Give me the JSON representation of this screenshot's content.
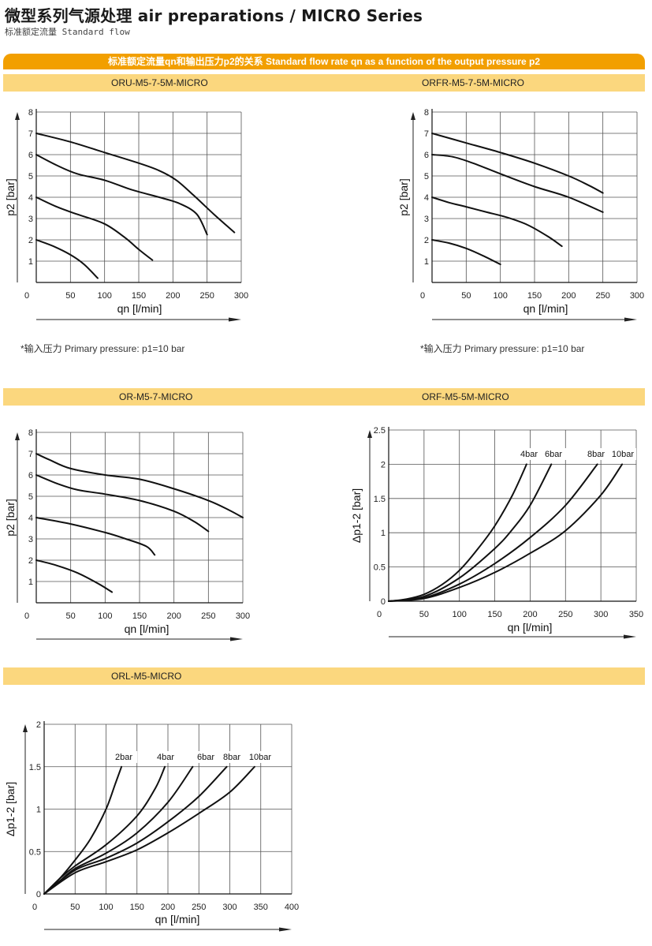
{
  "header": {
    "title": "微型系列气源处理 air preparations / MICRO Series",
    "subtitle": "标准额定流量 Standard flow"
  },
  "section_heading": "标准额定流量qn和输出压力p2的关系 Standard flow rate qn as a function of the output pressure p2",
  "footnotes": {
    "c0": "*输入压力 Primary pressure:  p1=10 bar",
    "c1": "*输入压力 Primary pressure:  p1=10 bar"
  },
  "colors": {
    "orange": "#f29f00",
    "band": "#fbd77e",
    "grid": "#555555",
    "curve": "#111111"
  },
  "chart_data": [
    {
      "type": "line",
      "title": "ORU-M5-7-5M-MICRO",
      "xlabel": "qn [l/min]",
      "ylabel": "p2 [bar]",
      "xlim": [
        0,
        300
      ],
      "ylim": [
        0,
        8
      ],
      "xticks": [
        0,
        50,
        100,
        150,
        200,
        250,
        300
      ],
      "yticks": [
        1,
        2,
        3,
        4,
        5,
        6,
        7,
        8
      ],
      "grid": true,
      "series": [
        {
          "x": [
            0,
            50,
            100,
            150,
            180,
            205,
            230,
            260,
            290
          ],
          "y": [
            7,
            6.6,
            6.1,
            5.6,
            5.25,
            4.8,
            4.1,
            3.2,
            2.35
          ]
        },
        {
          "x": [
            0,
            30,
            60,
            100,
            140,
            180,
            210,
            235,
            250
          ],
          "y": [
            6,
            5.5,
            5.1,
            4.8,
            4.35,
            4,
            3.7,
            3.2,
            2.25
          ]
        },
        {
          "x": [
            0,
            30,
            60,
            100,
            130,
            150,
            170
          ],
          "y": [
            4,
            3.55,
            3.2,
            2.75,
            2.1,
            1.55,
            1.05
          ]
        },
        {
          "x": [
            0,
            25,
            50,
            70,
            90
          ],
          "y": [
            2,
            1.7,
            1.3,
            0.85,
            0.2
          ]
        }
      ]
    },
    {
      "type": "line",
      "title": "ORFR-M5-7-5M-MICRO",
      "xlabel": "qn [l/min]",
      "ylabel": "p2 [bar]",
      "xlim": [
        0,
        300
      ],
      "ylim": [
        0,
        8
      ],
      "xticks": [
        0,
        50,
        100,
        150,
        200,
        250,
        300
      ],
      "yticks": [
        1,
        2,
        3,
        4,
        5,
        6,
        7,
        8
      ],
      "grid": true,
      "series": [
        {
          "x": [
            0,
            50,
            100,
            150,
            200,
            230,
            250
          ],
          "y": [
            7,
            6.55,
            6.1,
            5.6,
            5.0,
            4.55,
            4.2
          ]
        },
        {
          "x": [
            0,
            30,
            60,
            100,
            150,
            200,
            250
          ],
          "y": [
            6,
            5.9,
            5.6,
            5.1,
            4.5,
            4.0,
            3.3
          ]
        },
        {
          "x": [
            0,
            25,
            50,
            80,
            110,
            140,
            170,
            190
          ],
          "y": [
            4,
            3.75,
            3.55,
            3.3,
            3.05,
            2.7,
            2.15,
            1.7
          ]
        },
        {
          "x": [
            0,
            25,
            50,
            75,
            100
          ],
          "y": [
            2,
            1.85,
            1.6,
            1.25,
            0.85
          ]
        }
      ]
    },
    {
      "type": "line",
      "title": "OR-M5-7-MICRO",
      "xlabel": "qn [l/min]",
      "ylabel": "p2 [bar]",
      "xlim": [
        0,
        300
      ],
      "ylim": [
        0,
        8
      ],
      "xticks": [
        0,
        50,
        100,
        150,
        200,
        250,
        300
      ],
      "yticks": [
        1,
        2,
        3,
        4,
        5,
        6,
        7,
        8
      ],
      "grid": true,
      "series": [
        {
          "x": [
            0,
            20,
            50,
            100,
            150,
            200,
            250,
            280,
            300
          ],
          "y": [
            7,
            6.7,
            6.3,
            6.0,
            5.8,
            5.35,
            4.8,
            4.35,
            4.0
          ]
        },
        {
          "x": [
            0,
            30,
            60,
            100,
            150,
            200,
            230,
            250
          ],
          "y": [
            6,
            5.6,
            5.3,
            5.1,
            4.8,
            4.3,
            3.8,
            3.35
          ]
        },
        {
          "x": [
            0,
            50,
            100,
            130,
            160,
            172
          ],
          "y": [
            4,
            3.7,
            3.3,
            3.0,
            2.65,
            2.25
          ]
        },
        {
          "x": [
            0,
            30,
            60,
            90,
            110
          ],
          "y": [
            2,
            1.75,
            1.4,
            0.9,
            0.5
          ]
        }
      ]
    },
    {
      "type": "line",
      "title": "ORF-M5-5M-MICRO",
      "xlabel": "qn [l/min]",
      "ylabel": "Δp1-2 [bar]",
      "xlim": [
        0,
        350
      ],
      "ylim": [
        0,
        2.5
      ],
      "xticks": [
        0,
        50,
        100,
        150,
        200,
        250,
        300,
        350
      ],
      "yticks": [
        0,
        0.5,
        1,
        1.5,
        2,
        2.5
      ],
      "grid": true,
      "series": [
        {
          "name": "4bar",
          "x": [
            0,
            25,
            50,
            75,
            100,
            125,
            150,
            175,
            195
          ],
          "y": [
            0,
            0.03,
            0.1,
            0.24,
            0.45,
            0.75,
            1.1,
            1.55,
            2.0
          ]
        },
        {
          "name": "6bar",
          "x": [
            0,
            50,
            100,
            150,
            175,
            200,
            230
          ],
          "y": [
            0,
            0.07,
            0.34,
            0.77,
            1.05,
            1.4,
            2.0
          ]
        },
        {
          "name": "8bar",
          "x": [
            0,
            50,
            100,
            150,
            200,
            250,
            295
          ],
          "y": [
            0,
            0.05,
            0.25,
            0.55,
            0.93,
            1.4,
            2.0
          ]
        },
        {
          "name": "10bar",
          "x": [
            0,
            50,
            100,
            150,
            200,
            250,
            300,
            330
          ],
          "y": [
            0,
            0.04,
            0.2,
            0.42,
            0.7,
            1.03,
            1.55,
            2.0
          ]
        }
      ]
    },
    {
      "type": "line",
      "title": "ORL-M5-MICRO",
      "xlabel": "qn [l/min]",
      "ylabel": "Δp1-2 [bar]",
      "xlim": [
        0,
        400
      ],
      "ylim": [
        0,
        2
      ],
      "xticks": [
        0,
        50,
        100,
        150,
        200,
        250,
        300,
        350,
        400
      ],
      "yticks": [
        0,
        0.5,
        1,
        1.5,
        2
      ],
      "grid": true,
      "series": [
        {
          "name": "2bar",
          "x": [
            0,
            25,
            50,
            75,
            100,
            115,
            125
          ],
          "y": [
            0,
            0.18,
            0.4,
            0.65,
            1.0,
            1.3,
            1.5
          ]
        },
        {
          "name": "4bar",
          "x": [
            0,
            25,
            50,
            100,
            150,
            180,
            195
          ],
          "y": [
            0,
            0.18,
            0.33,
            0.58,
            0.92,
            1.25,
            1.5
          ]
        },
        {
          "name": "6bar",
          "x": [
            0,
            25,
            50,
            100,
            150,
            200,
            240
          ],
          "y": [
            0,
            0.15,
            0.3,
            0.48,
            0.72,
            1.08,
            1.5
          ]
        },
        {
          "name": "8bar",
          "x": [
            0,
            50,
            100,
            150,
            200,
            250,
            295
          ],
          "y": [
            0,
            0.28,
            0.42,
            0.6,
            0.85,
            1.15,
            1.5
          ]
        },
        {
          "name": "10bar",
          "x": [
            0,
            50,
            100,
            150,
            200,
            250,
            300,
            340
          ],
          "y": [
            0,
            0.25,
            0.38,
            0.52,
            0.72,
            0.95,
            1.2,
            1.5
          ]
        }
      ]
    }
  ]
}
